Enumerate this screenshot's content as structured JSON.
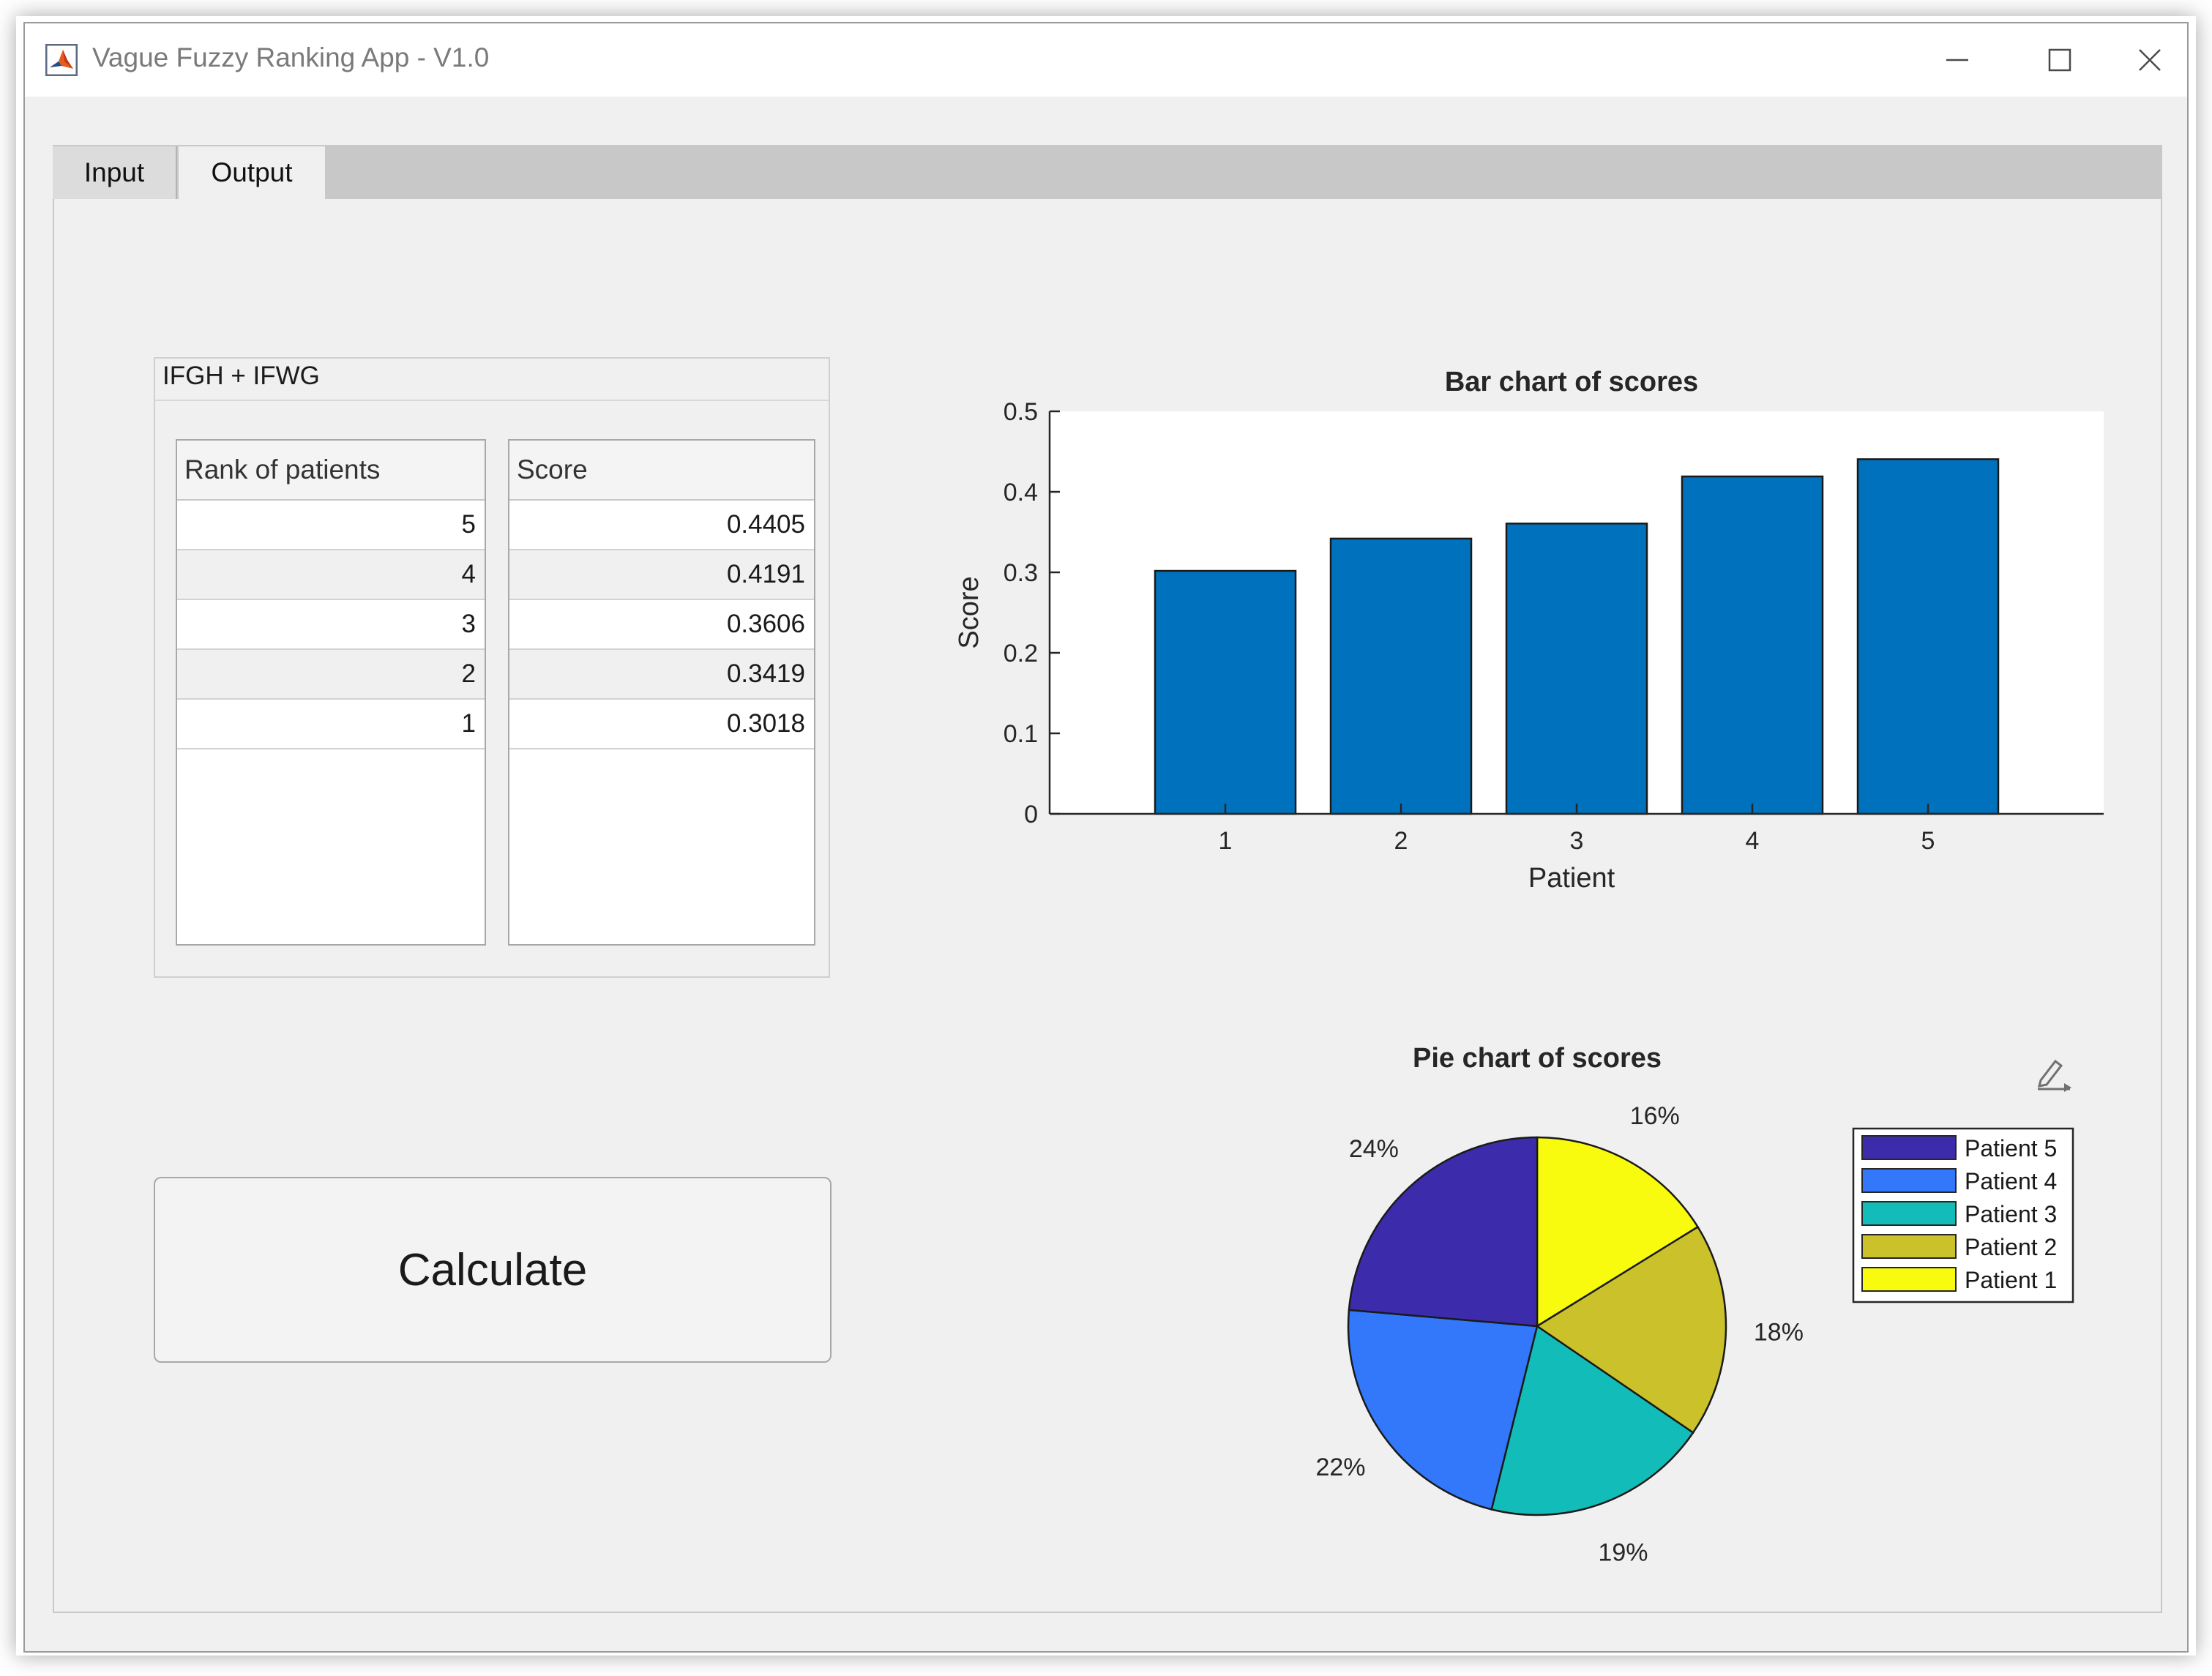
{
  "window": {
    "title": "Vague Fuzzy Ranking App - V1.0"
  },
  "tabs": [
    {
      "label": "Input",
      "selected": false
    },
    {
      "label": "Output",
      "selected": true
    }
  ],
  "results_panel": {
    "title": "IFGH + IFWG",
    "rank_table": {
      "header": "Rank of patients",
      "rows": [
        "5",
        "4",
        "3",
        "2",
        "1"
      ]
    },
    "score_table": {
      "header": "Score",
      "rows": [
        "0.4405",
        "0.4191",
        "0.3606",
        "0.3419",
        "0.3018"
      ]
    }
  },
  "calculate_button": {
    "label": "Calculate"
  },
  "chart_data": [
    {
      "type": "bar",
      "title": "Bar chart of scores",
      "xlabel": "Patient",
      "ylabel": "Score",
      "categories": [
        "1",
        "2",
        "3",
        "4",
        "5"
      ],
      "values": [
        0.3018,
        0.3419,
        0.3606,
        0.4191,
        0.4405
      ],
      "ylim": [
        0,
        0.5
      ],
      "yticks": [
        "0",
        "0.1",
        "0.2",
        "0.3",
        "0.4",
        "0.5"
      ],
      "grid": false,
      "bar_color": "#0072bd"
    },
    {
      "type": "pie",
      "title": "Pie chart of scores",
      "slices": [
        {
          "name": "Patient 1",
          "value": 0.3018,
          "label": "16%",
          "color": "#f9fb0e"
        },
        {
          "name": "Patient 2",
          "value": 0.3419,
          "label": "18%",
          "color": "#cbc12a"
        },
        {
          "name": "Patient 3",
          "value": 0.3606,
          "label": "19%",
          "color": "#12bdb9"
        },
        {
          "name": "Patient 4",
          "value": 0.4191,
          "label": "22%",
          "color": "#3377fa"
        },
        {
          "name": "Patient 5",
          "value": 0.4405,
          "label": "24%",
          "color": "#3c2cab"
        }
      ],
      "legend": {
        "placement": "right",
        "entries": [
          "Patient 5",
          "Patient 4",
          "Patient 3",
          "Patient 2",
          "Patient 1"
        ]
      }
    }
  ],
  "icons": {
    "app": "matlab-icon",
    "minimize": "minimize-icon",
    "maximize": "maximize-icon",
    "close": "close-icon",
    "axes_toolbar": "edit-plot-icon"
  }
}
